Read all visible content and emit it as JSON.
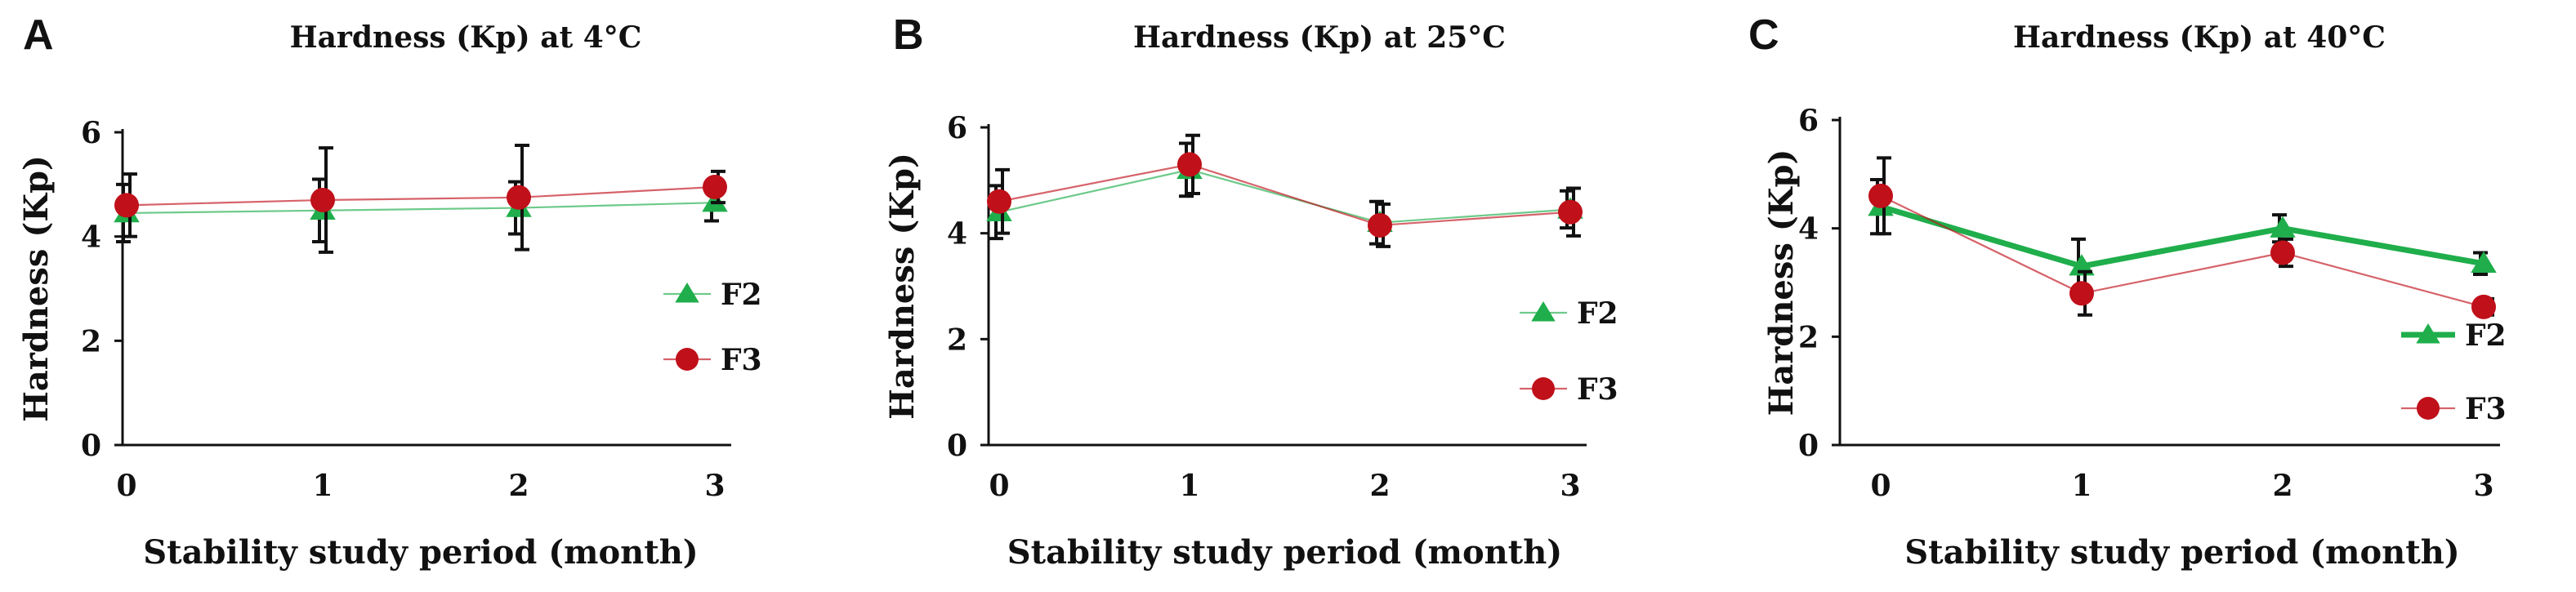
{
  "chart_data": [
    {
      "type": "line",
      "panel": "A",
      "title": "Hardness (Kp) at 4°C",
      "xlabel": "Stability study period (month)",
      "ylabel": "Hardness (Kp)",
      "categories": [
        "0",
        "1",
        "2",
        "3"
      ],
      "xticks": [
        0,
        1,
        2,
        3
      ],
      "yticks": [
        0,
        2,
        4,
        6
      ],
      "ylim": [
        0,
        6
      ],
      "legend_position": "right",
      "series": [
        {
          "name": "F2",
          "color": "#1fae4b",
          "marker": "triangle",
          "line": "thin",
          "values": [
            4.45,
            4.5,
            4.55,
            4.65
          ],
          "err": [
            0.55,
            0.6,
            0.5,
            0.35
          ]
        },
        {
          "name": "F3",
          "color": "#c0101a",
          "marker": "circle",
          "line": "thin",
          "values": [
            4.6,
            4.7,
            4.75,
            4.95
          ],
          "err": [
            0.6,
            1.0,
            1.0,
            0.3
          ]
        }
      ]
    },
    {
      "type": "line",
      "panel": "B",
      "title": "Hardness (Kp) at 25°C",
      "xlabel": "Stability study period (month)",
      "ylabel": "Hardness (Kp)",
      "categories": [
        "0",
        "1",
        "2",
        "3"
      ],
      "xticks": [
        0,
        1,
        2,
        3
      ],
      "yticks": [
        0,
        2,
        4,
        6
      ],
      "ylim": [
        0,
        6
      ],
      "legend_position": "right",
      "series": [
        {
          "name": "F2",
          "color": "#1fae4b",
          "marker": "triangle",
          "line": "thin",
          "values": [
            4.4,
            5.2,
            4.2,
            4.45
          ],
          "err": [
            0.5,
            0.5,
            0.4,
            0.35
          ]
        },
        {
          "name": "F3",
          "color": "#c0101a",
          "marker": "circle",
          "line": "thin",
          "values": [
            4.6,
            5.3,
            4.15,
            4.4
          ],
          "err": [
            0.6,
            0.55,
            0.4,
            0.45
          ]
        }
      ]
    },
    {
      "type": "line",
      "panel": "C",
      "title": "Hardness (Kp) at 40°C",
      "xlabel": "Stability study period (month)",
      "ylabel": "Hardness (Kp)",
      "categories": [
        "0",
        "1",
        "2",
        "3"
      ],
      "xticks": [
        0,
        1,
        2,
        3
      ],
      "yticks": [
        0,
        2,
        4,
        6
      ],
      "ylim": [
        0,
        6
      ],
      "legend_position": "right",
      "series": [
        {
          "name": "F2",
          "color": "#1fae4b",
          "marker": "triangle",
          "line": "thick",
          "values": [
            4.4,
            3.3,
            4.0,
            3.35
          ],
          "err": [
            0.5,
            0.5,
            0.25,
            0.2
          ]
        },
        {
          "name": "F3",
          "color": "#c0101a",
          "marker": "circle",
          "line": "thin",
          "values": [
            4.6,
            2.8,
            3.55,
            2.55
          ],
          "err": [
            0.7,
            0.4,
            0.25,
            0.15
          ]
        }
      ]
    }
  ]
}
